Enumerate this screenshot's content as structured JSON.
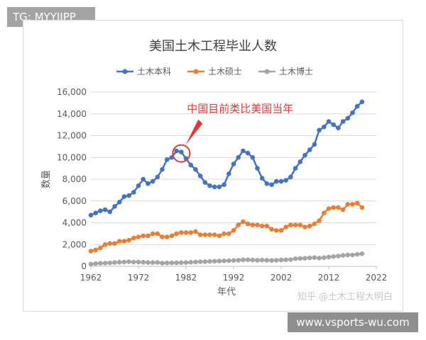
{
  "overlays": {
    "top_badge": "TG: MYYJJPP",
    "bottom_badge": "www.vsports-wu.com",
    "watermark": "知乎 @土木工程大明白"
  },
  "colors": {
    "bachelor": "#4472c4",
    "master": "#ed7d31",
    "doctor": "#a5a5a5",
    "annotation": "#e03a3a",
    "grid": "#d9d9d9",
    "text": "#595959"
  },
  "chart_data": {
    "type": "line",
    "title": "美国土木工程毕业人数",
    "xlabel": "年代",
    "ylabel": "数量",
    "xlim": [
      1962,
      2022
    ],
    "ylim": [
      0,
      16000
    ],
    "x_ticks": [
      1962,
      1972,
      1982,
      1992,
      2002,
      2012,
      2022
    ],
    "y_ticks": [
      0,
      2000,
      4000,
      6000,
      8000,
      10000,
      12000,
      14000,
      16000
    ],
    "y_tick_labels": [
      "0",
      "2,000",
      "4,000",
      "6,000",
      "8,000",
      "10,000",
      "12,000",
      "14,000",
      "16,000"
    ],
    "grid": "horizontal",
    "legend": "top",
    "x": [
      1962,
      1963,
      1964,
      1965,
      1966,
      1967,
      1968,
      1969,
      1970,
      1971,
      1972,
      1973,
      1974,
      1975,
      1976,
      1977,
      1978,
      1979,
      1980,
      1981,
      1982,
      1983,
      1984,
      1985,
      1986,
      1987,
      1988,
      1989,
      1990,
      1991,
      1992,
      1993,
      1994,
      1995,
      1996,
      1997,
      1998,
      1999,
      2000,
      2001,
      2002,
      2003,
      2004,
      2005,
      2006,
      2007,
      2008,
      2009,
      2010,
      2011,
      2012,
      2013,
      2014,
      2015,
      2016,
      2017,
      2018,
      2019
    ],
    "series": [
      {
        "name": "土木本科",
        "color_key": "bachelor",
        "values": [
          4700,
          4900,
          5100,
          5200,
          5000,
          5500,
          5900,
          6400,
          6500,
          6800,
          7400,
          8000,
          7600,
          7800,
          8200,
          8900,
          9800,
          10000,
          10600,
          10500,
          9900,
          9300,
          8900,
          8300,
          7700,
          7400,
          7300,
          7300,
          7500,
          8500,
          9400,
          10000,
          10600,
          10400,
          10000,
          9000,
          8100,
          7600,
          7500,
          7800,
          7800,
          7900,
          8200,
          9000,
          9600,
          10200,
          10700,
          11200,
          12500,
          12800,
          13300,
          13000,
          12700,
          13300,
          13600,
          14100,
          14700,
          15100
        ]
      },
      {
        "name": "土木硕士",
        "color_key": "master",
        "values": [
          1400,
          1500,
          1700,
          2000,
          2100,
          2100,
          2300,
          2300,
          2400,
          2600,
          2700,
          2800,
          2800,
          3000,
          3000,
          2700,
          2700,
          2800,
          3000,
          3100,
          3100,
          3100,
          3200,
          2900,
          2900,
          2900,
          2900,
          2800,
          3000,
          3000,
          3300,
          3800,
          4100,
          3900,
          3800,
          3800,
          3700,
          3700,
          3400,
          3300,
          3300,
          3600,
          3800,
          3800,
          3800,
          3600,
          3700,
          3900,
          4200,
          4900,
          5300,
          5400,
          5400,
          5200,
          5700,
          5700,
          5800,
          5400
        ]
      },
      {
        "name": "土木博士",
        "color_key": "doctor",
        "values": [
          200,
          250,
          280,
          300,
          320,
          350,
          380,
          400,
          420,
          400,
          400,
          380,
          350,
          350,
          360,
          300,
          310,
          320,
          330,
          340,
          350,
          380,
          400,
          420,
          430,
          450,
          470,
          490,
          500,
          520,
          540,
          560,
          600,
          600,
          580,
          560,
          570,
          560,
          540,
          560,
          580,
          600,
          620,
          700,
          720,
          750,
          780,
          800,
          760,
          800,
          850,
          900,
          950,
          1000,
          1050,
          1050,
          1100,
          1150
        ]
      }
    ],
    "annotations": [
      {
        "text": "中国目前类比美国当年",
        "x": 1981,
        "y": 10500
      }
    ]
  }
}
